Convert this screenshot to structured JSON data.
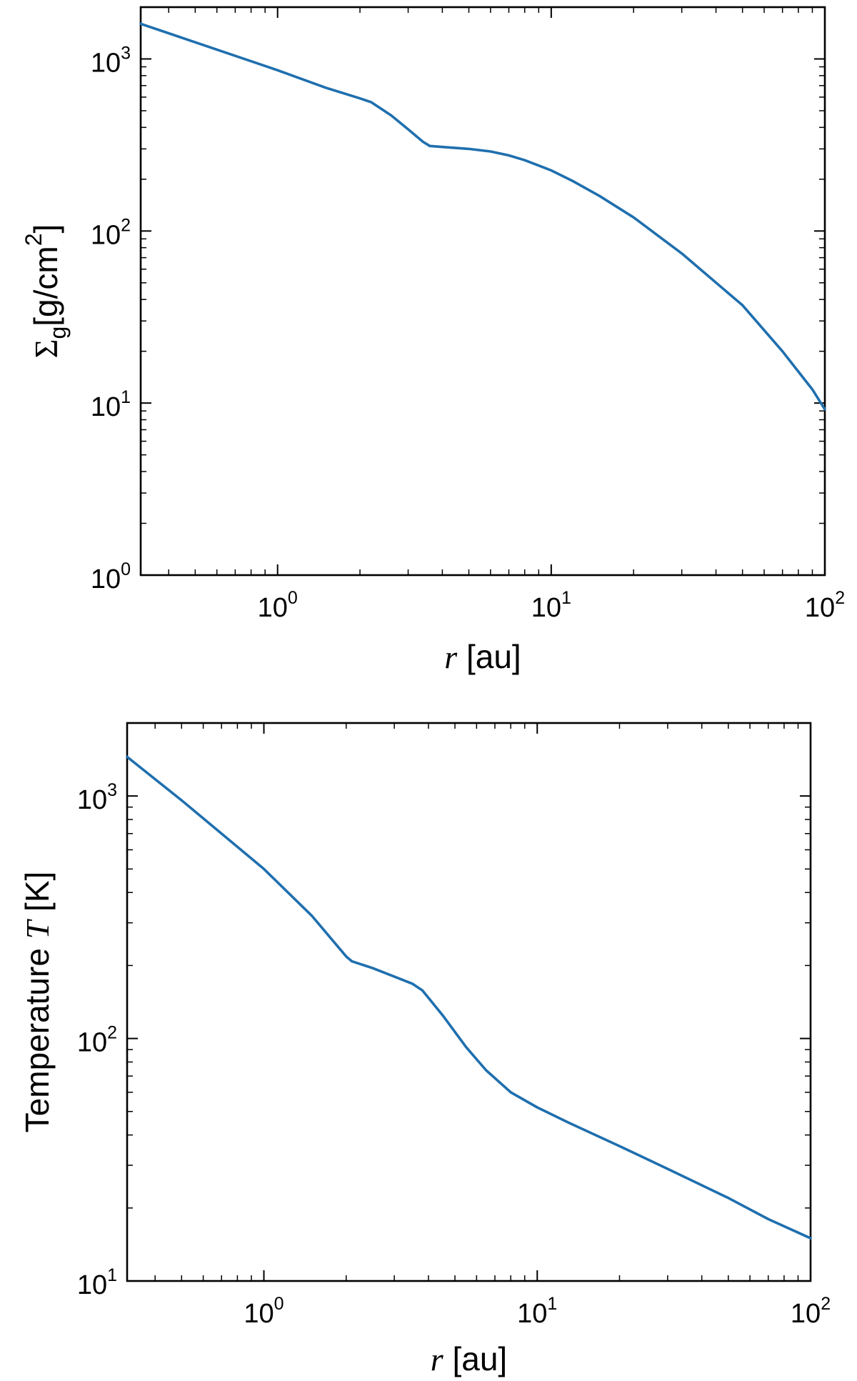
{
  "colors": {
    "line": "#1f6fae",
    "axes": "#000000",
    "background": "#ffffff"
  },
  "chart_data": [
    {
      "type": "line",
      "title": "",
      "xlabel": "r [au]",
      "xlabel_parts": {
        "var": "r",
        "unit": " [au]"
      },
      "ylabel": "Σg[g/cm2]",
      "ylabel_parts": {
        "symbol": "Σ",
        "sub": "g",
        "unit": "[g/cm",
        "sup": "2",
        "close": "]"
      },
      "xscale": "log",
      "yscale": "log",
      "xlim": [
        0.316,
        100
      ],
      "ylim": [
        1,
        2000
      ],
      "xticks": [
        1,
        10,
        100
      ],
      "xtick_labels": [
        {
          "base": "10",
          "exp": "0"
        },
        {
          "base": "10",
          "exp": "1"
        },
        {
          "base": "10",
          "exp": "2"
        }
      ],
      "yticks": [
        1,
        10,
        100,
        1000
      ],
      "ytick_labels": [
        {
          "base": "10",
          "exp": "0"
        },
        {
          "base": "10",
          "exp": "1"
        },
        {
          "base": "10",
          "exp": "2"
        },
        {
          "base": "10",
          "exp": "3"
        }
      ],
      "grid": false,
      "series": [
        {
          "x": [
            0.316,
            0.5,
            1.0,
            1.5,
            2.0,
            2.2,
            2.6,
            3.0,
            3.4,
            3.6,
            4.0,
            5.0,
            6.0,
            7.0,
            8.0,
            10,
            12,
            15,
            20,
            30,
            50,
            70,
            90,
            100
          ],
          "y": [
            1600,
            1250,
            860,
            680,
            590,
            560,
            470,
            390,
            330,
            312,
            308,
            300,
            290,
            275,
            258,
            225,
            195,
            160,
            120,
            74,
            37,
            20,
            12,
            9.2
          ]
        }
      ]
    },
    {
      "type": "line",
      "title": "",
      "xlabel": "r [au]",
      "xlabel_parts": {
        "var": "r",
        "unit": " [au]"
      },
      "ylabel": "Temperature T [K]",
      "ylabel_parts": {
        "word": "Temperature ",
        "var": "T",
        "unit": " [K]"
      },
      "xscale": "log",
      "yscale": "log",
      "xlim": [
        0.316,
        100
      ],
      "ylim": [
        10,
        2000
      ],
      "xticks": [
        1,
        10,
        100
      ],
      "xtick_labels": [
        {
          "base": "10",
          "exp": "0"
        },
        {
          "base": "10",
          "exp": "1"
        },
        {
          "base": "10",
          "exp": "2"
        }
      ],
      "yticks": [
        10,
        100,
        1000
      ],
      "ytick_labels": [
        {
          "base": "10",
          "exp": "1"
        },
        {
          "base": "10",
          "exp": "2"
        },
        {
          "base": "10",
          "exp": "3"
        }
      ],
      "grid": false,
      "series": [
        {
          "x": [
            0.316,
            0.5,
            1.0,
            1.5,
            2.0,
            2.1,
            2.5,
            3.0,
            3.5,
            3.8,
            4.5,
            5.5,
            6.5,
            8.0,
            10,
            13,
            20,
            30,
            50,
            70,
            100
          ],
          "y": [
            1450,
            960,
            500,
            320,
            218,
            208,
            195,
            180,
            168,
            158,
            125,
            92,
            74,
            60,
            52,
            45,
            36,
            29,
            22,
            18,
            15
          ]
        }
      ]
    }
  ]
}
